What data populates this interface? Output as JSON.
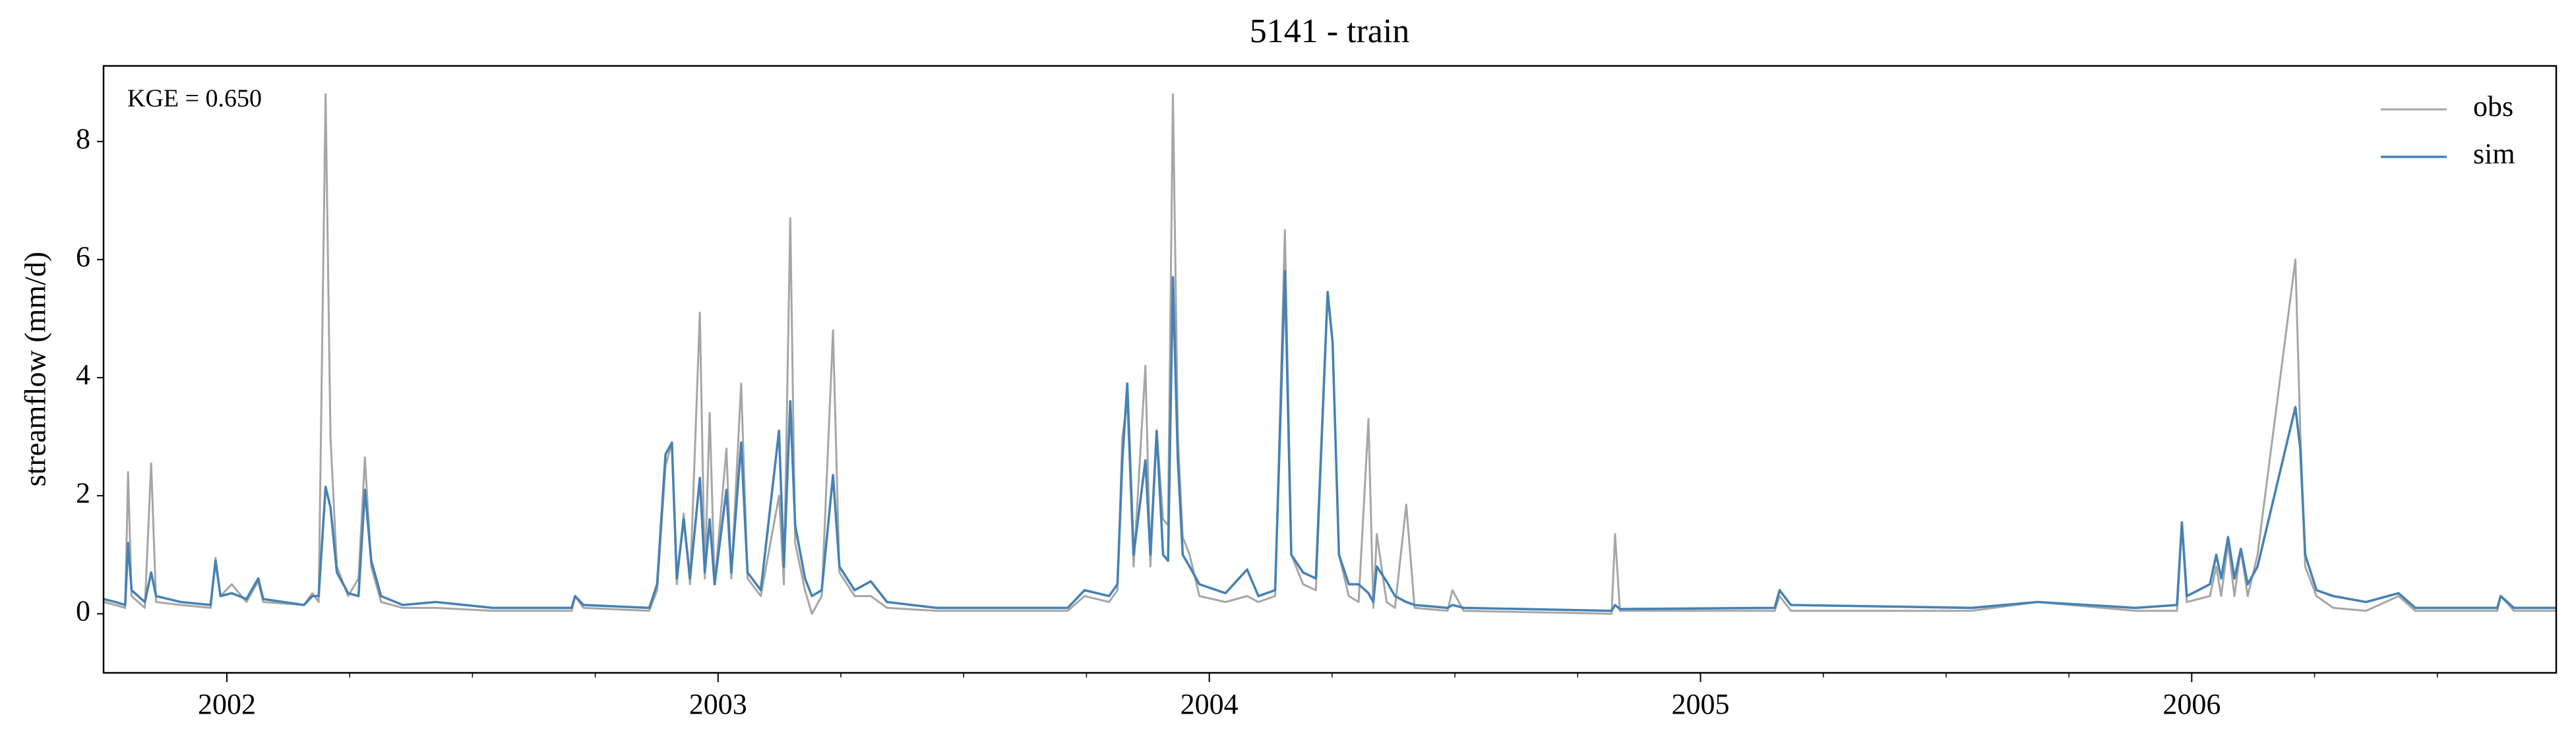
{
  "chart_data": {
    "type": "line",
    "title": "5141 - train",
    "y_label": "streamflow (mm/d)",
    "annotation": "KGE = 0.650",
    "legend": "upper right",
    "xlim": [
      2001.749,
      2006.742
    ],
    "xticks": [
      2002,
      2003,
      2004,
      2005,
      2006
    ],
    "xminorticks": [
      2002.25,
      2002.5,
      2002.75,
      2003.25,
      2003.5,
      2003.75,
      2004.25,
      2004.5,
      2004.75,
      2005.25,
      2005.5,
      2005.75,
      2006.25,
      2006.5
    ],
    "ylim": [
      -1,
      9.28
    ],
    "yticks": [
      0,
      2,
      4,
      6,
      8
    ],
    "x": [
      2001.749,
      2001.773,
      2001.793,
      2001.799,
      2001.806,
      2001.833,
      2001.846,
      2001.856,
      2001.906,
      2001.967,
      2001.977,
      2001.987,
      2002.01,
      2002.04,
      2002.064,
      2002.074,
      2002.157,
      2002.174,
      2002.187,
      2002.201,
      2002.211,
      2002.224,
      2002.247,
      2002.268,
      2002.281,
      2002.294,
      2002.314,
      2002.358,
      2002.425,
      2002.542,
      2002.702,
      2002.709,
      2002.726,
      2002.86,
      2002.876,
      2002.893,
      2002.906,
      2002.916,
      2002.93,
      2002.943,
      2002.963,
      2002.973,
      2002.983,
      2002.993,
      2003.017,
      2003.027,
      2003.047,
      2003.06,
      2003.087,
      2003.124,
      2003.134,
      2003.147,
      2003.157,
      2003.177,
      2003.191,
      2003.211,
      2003.234,
      2003.247,
      2003.278,
      2003.311,
      2003.344,
      2003.445,
      2003.712,
      2003.746,
      2003.796,
      2003.813,
      2003.823,
      2003.833,
      2003.846,
      2003.87,
      2003.88,
      2003.893,
      2003.906,
      2003.916,
      2003.926,
      2003.936,
      2003.946,
      2003.96,
      2003.98,
      2004.033,
      2004.077,
      2004.1,
      2004.134,
      2004.154,
      2004.167,
      2004.191,
      2004.217,
      2004.241,
      2004.251,
      2004.264,
      2004.284,
      2004.304,
      2004.324,
      2004.334,
      2004.341,
      2004.361,
      2004.378,
      2004.401,
      2004.418,
      2004.485,
      2004.495,
      2004.518,
      2004.819,
      2004.826,
      2004.836,
      2005.151,
      2005.161,
      2005.184,
      2005.552,
      2005.686,
      2005.886,
      2005.97,
      2005.98,
      2005.99,
      2006.037,
      2006.05,
      2006.06,
      2006.074,
      2006.087,
      2006.1,
      2006.114,
      2006.134,
      2006.211,
      2006.221,
      2006.231,
      2006.254,
      2006.288,
      2006.355,
      2006.421,
      2006.455,
      2006.622,
      2006.629,
      2006.656,
      2006.742
    ],
    "series": [
      {
        "name": "obs",
        "color": "#a6a6a6",
        "values": [
          0.2,
          0.15,
          0.1,
          2.4,
          0.3,
          0.1,
          2.55,
          0.2,
          0.15,
          0.1,
          0.95,
          0.3,
          0.5,
          0.2,
          0.55,
          0.2,
          0.15,
          0.35,
          0.2,
          8.8,
          3.0,
          0.8,
          0.3,
          0.6,
          2.65,
          0.8,
          0.2,
          0.1,
          0.1,
          0.05,
          0.05,
          0.3,
          0.1,
          0.05,
          0.4,
          2.5,
          2.9,
          0.5,
          1.7,
          0.5,
          5.1,
          0.6,
          3.4,
          0.5,
          2.8,
          0.6,
          3.9,
          0.6,
          0.3,
          2.0,
          0.5,
          6.7,
          1.2,
          0.4,
          0.0,
          0.3,
          4.8,
          0.7,
          0.3,
          0.3,
          0.1,
          0.05,
          0.05,
          0.3,
          0.2,
          0.4,
          3.0,
          3.6,
          0.8,
          4.2,
          0.8,
          3.1,
          1.6,
          1.5,
          8.8,
          3.0,
          1.3,
          1.0,
          0.3,
          0.2,
          0.3,
          0.2,
          0.3,
          6.5,
          1.0,
          0.5,
          0.4,
          5.4,
          4.6,
          1.0,
          0.3,
          0.2,
          3.3,
          0.1,
          1.35,
          0.2,
          0.1,
          1.85,
          0.1,
          0.05,
          0.4,
          0.05,
          0.0,
          1.35,
          0.05,
          0.05,
          0.3,
          0.05,
          0.05,
          0.2,
          0.05,
          0.05,
          1.5,
          0.2,
          0.3,
          0.8,
          0.3,
          1.2,
          0.3,
          1.1,
          0.3,
          1.0,
          6.0,
          3.1,
          0.8,
          0.3,
          0.1,
          0.05,
          0.3,
          0.05,
          0.05,
          0.3,
          0.05,
          0.05
        ]
      },
      {
        "name": "sim",
        "color": "#4682b4",
        "values": [
          0.25,
          0.2,
          0.15,
          1.2,
          0.4,
          0.2,
          0.7,
          0.3,
          0.2,
          0.15,
          0.9,
          0.3,
          0.35,
          0.25,
          0.6,
          0.25,
          0.15,
          0.3,
          0.3,
          2.15,
          1.8,
          0.7,
          0.35,
          0.3,
          2.1,
          0.9,
          0.3,
          0.15,
          0.2,
          0.1,
          0.1,
          0.3,
          0.15,
          0.1,
          0.5,
          2.7,
          2.9,
          0.6,
          1.6,
          0.6,
          2.3,
          0.7,
          1.6,
          0.5,
          2.1,
          0.7,
          2.9,
          0.7,
          0.4,
          3.1,
          0.8,
          3.6,
          1.5,
          0.6,
          0.3,
          0.4,
          2.35,
          0.8,
          0.4,
          0.55,
          0.2,
          0.1,
          0.1,
          0.4,
          0.3,
          0.5,
          2.6,
          3.9,
          1.0,
          2.6,
          1.0,
          3.1,
          1.0,
          0.9,
          5.7,
          2.6,
          1.0,
          0.8,
          0.5,
          0.35,
          0.75,
          0.3,
          0.4,
          5.8,
          1.0,
          0.7,
          0.6,
          5.45,
          4.6,
          1.0,
          0.5,
          0.5,
          0.35,
          0.2,
          0.8,
          0.55,
          0.3,
          0.2,
          0.15,
          0.1,
          0.15,
          0.1,
          0.05,
          0.15,
          0.08,
          0.1,
          0.4,
          0.15,
          0.1,
          0.2,
          0.1,
          0.15,
          1.55,
          0.3,
          0.5,
          1.0,
          0.6,
          1.3,
          0.6,
          1.1,
          0.5,
          0.8,
          3.5,
          2.8,
          1.0,
          0.4,
          0.3,
          0.2,
          0.35,
          0.1,
          0.1,
          0.3,
          0.1,
          0.1
        ]
      }
    ]
  }
}
